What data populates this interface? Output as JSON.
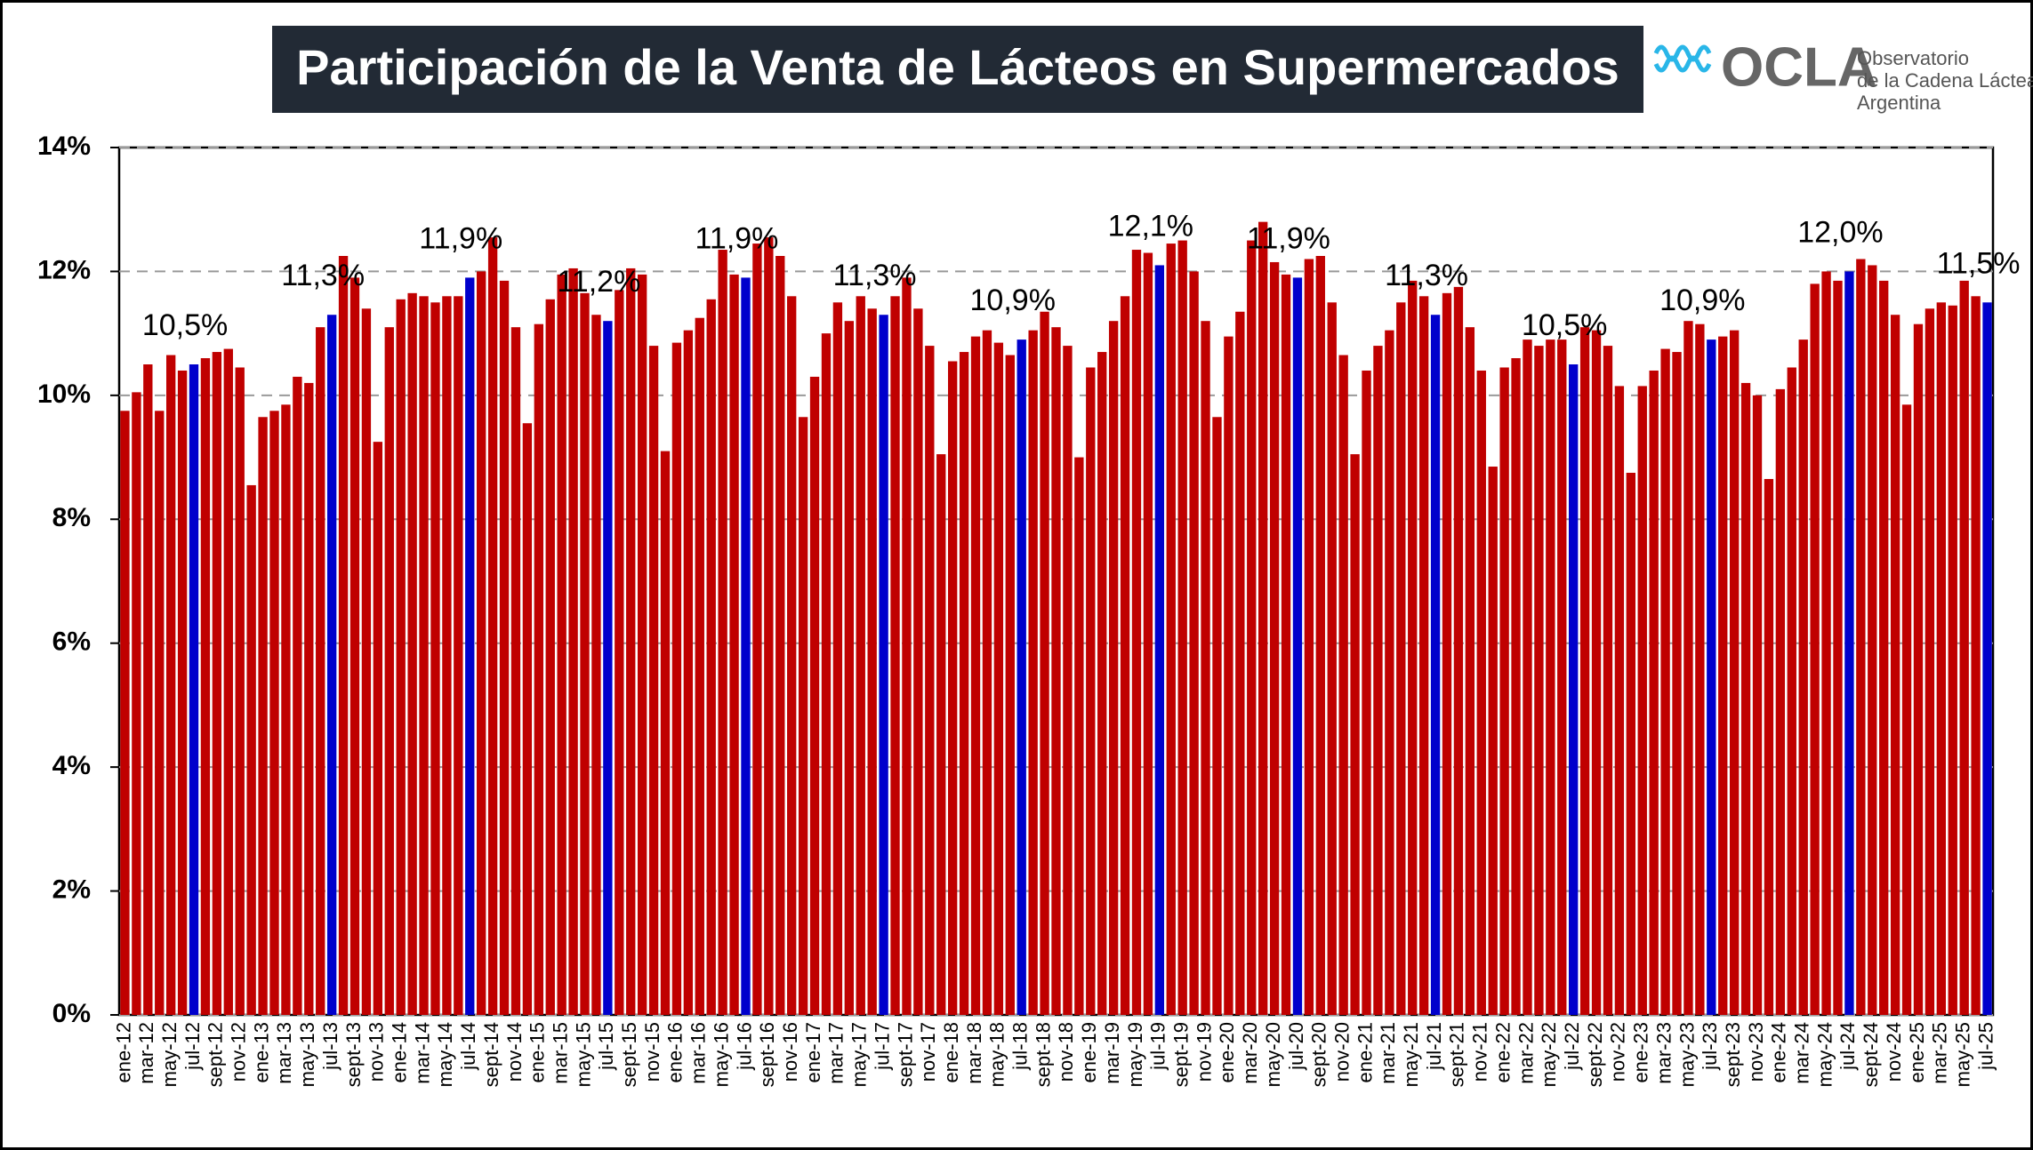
{
  "chart_data": {
    "type": "bar",
    "title": "Participación  de la Venta de Lácteos en Supermercados",
    "logo": {
      "name": "OCLA",
      "line1": "Observatorio",
      "line2": "de la Cadena Láctea",
      "line3": "Argentina"
    },
    "categories": [
      "ene-12",
      null,
      "mar-12",
      null,
      "may-12",
      null,
      "jul-12",
      null,
      "sept-12",
      null,
      "nov-12",
      null,
      "ene-13",
      null,
      "mar-13",
      null,
      "may-13",
      null,
      "jul-13",
      null,
      "sept-13",
      null,
      "nov-13",
      null,
      "ene-14",
      null,
      "mar-14",
      null,
      "may-14",
      null,
      "jul-14",
      null,
      "sept-14",
      null,
      "nov-14",
      null,
      "ene-15",
      null,
      "mar-15",
      null,
      "may-15",
      null,
      "jul-15",
      null,
      "sept-15",
      null,
      "nov-15",
      null,
      "ene-16",
      null,
      "mar-16",
      null,
      "may-16",
      null,
      "jul-16",
      null,
      "sept-16",
      null,
      "nov-16",
      null,
      "ene-17",
      null,
      "mar-17",
      null,
      "may-17",
      null,
      "jul-17",
      null,
      "sept-17",
      null,
      "nov-17",
      null,
      "ene-18",
      null,
      "mar-18",
      null,
      "may-18",
      null,
      "jul-18",
      null,
      "sept-18",
      null,
      "nov-18",
      null,
      "ene-19",
      null,
      "mar-19",
      null,
      "may-19",
      null,
      "jul-19",
      null,
      "sept-19",
      null,
      "nov-19",
      null,
      "ene-20",
      null,
      "mar-20",
      null,
      "may-20",
      null,
      "jul-20",
      null,
      "sept-20",
      null,
      "nov-20",
      null,
      "ene-21",
      null,
      "mar-21",
      null,
      "may-21",
      null,
      "jul-21",
      null,
      "sept-21",
      null,
      "nov-21",
      null,
      "ene-22",
      null,
      "mar-22",
      null,
      "may-22",
      null,
      "jul-22",
      null,
      "sept-22",
      null,
      "nov-22",
      null,
      "ene-23",
      null,
      "mar-23",
      null,
      "may-23",
      null,
      "jul-23",
      null,
      "sept-23",
      null,
      "nov-23",
      null,
      "ene-24",
      null,
      "mar-24",
      null,
      "may-24",
      null,
      "jul-24",
      null,
      "sept-24",
      null,
      "nov-24",
      null,
      "ene-25",
      null,
      "mar-25",
      null,
      "may-25",
      null,
      "jul-25"
    ],
    "values": [
      9.75,
      10.05,
      10.5,
      9.75,
      10.65,
      10.4,
      10.5,
      10.6,
      10.7,
      10.75,
      10.45,
      8.55,
      9.65,
      9.75,
      9.85,
      10.3,
      10.2,
      11.1,
      11.3,
      12.25,
      11.9,
      11.4,
      9.25,
      11.1,
      11.55,
      11.65,
      11.6,
      11.5,
      11.6,
      11.6,
      11.9,
      12.0,
      12.55,
      11.85,
      11.1,
      9.55,
      11.15,
      11.55,
      11.95,
      12.05,
      11.65,
      11.3,
      11.2,
      11.7,
      12.05,
      11.95,
      10.8,
      9.1,
      10.85,
      11.05,
      11.25,
      11.55,
      12.35,
      11.95,
      11.9,
      12.45,
      12.55,
      12.25,
      11.6,
      9.65,
      10.3,
      11.0,
      11.5,
      11.2,
      11.6,
      11.4,
      11.3,
      11.6,
      11.9,
      11.4,
      10.8,
      9.05,
      10.55,
      10.7,
      10.95,
      11.05,
      10.85,
      10.65,
      10.9,
      11.05,
      11.35,
      11.1,
      10.8,
      9.0,
      10.45,
      10.7,
      11.2,
      11.6,
      12.35,
      12.3,
      12.1,
      12.45,
      12.5,
      12.0,
      11.2,
      9.65,
      10.95,
      11.35,
      12.5,
      12.8,
      12.15,
      11.95,
      11.9,
      12.2,
      12.25,
      11.5,
      10.65,
      9.05,
      10.4,
      10.8,
      11.05,
      11.5,
      11.85,
      11.6,
      11.3,
      11.65,
      11.75,
      11.1,
      10.4,
      8.85,
      10.45,
      10.6,
      10.9,
      10.8,
      10.9,
      10.9,
      10.5,
      11.1,
      11.05,
      10.8,
      10.15,
      8.75,
      10.15,
      10.4,
      10.75,
      10.7,
      11.2,
      11.15,
      10.9,
      10.95,
      11.05,
      10.2,
      10.0,
      8.65,
      10.1,
      10.45,
      10.9,
      11.8,
      12.0,
      11.85,
      12.0,
      12.2,
      12.1,
      11.85,
      11.3,
      9.85,
      11.15,
      11.4,
      11.5,
      11.45,
      11.85,
      11.6,
      11.5
    ],
    "value_labels": [
      null,
      null,
      null,
      null,
      null,
      null,
      "10,5%",
      null,
      null,
      null,
      null,
      null,
      null,
      null,
      null,
      null,
      null,
      null,
      "11,3%",
      null,
      null,
      null,
      null,
      null,
      null,
      null,
      null,
      null,
      null,
      null,
      "11,9%",
      null,
      null,
      null,
      null,
      null,
      null,
      null,
      null,
      null,
      null,
      null,
      "11,2%",
      null,
      null,
      null,
      null,
      null,
      null,
      null,
      null,
      null,
      null,
      null,
      "11,9%",
      null,
      null,
      null,
      null,
      null,
      null,
      null,
      null,
      null,
      null,
      null,
      "11,3%",
      null,
      null,
      null,
      null,
      null,
      null,
      null,
      null,
      null,
      null,
      null,
      "10,9%",
      null,
      null,
      null,
      null,
      null,
      null,
      null,
      null,
      null,
      null,
      null,
      "12,1%",
      null,
      null,
      null,
      null,
      null,
      null,
      null,
      null,
      null,
      null,
      null,
      "11,9%",
      null,
      null,
      null,
      null,
      null,
      null,
      null,
      null,
      null,
      null,
      null,
      "11,3%",
      null,
      null,
      null,
      null,
      null,
      null,
      null,
      null,
      null,
      null,
      null,
      "10,5%",
      null,
      null,
      null,
      null,
      null,
      null,
      null,
      null,
      null,
      null,
      null,
      "10,9%",
      null,
      null,
      null,
      null,
      null,
      null,
      null,
      null,
      null,
      null,
      null,
      "12,0%",
      null,
      null,
      null,
      null,
      null,
      null,
      null,
      null,
      null,
      null,
      null,
      "11,5%"
    ],
    "color": "#c00000",
    "highlight_color": "#0000cc",
    "ylim": [
      0,
      14
    ],
    "yticks": [
      {
        "value": 0,
        "label": "0%"
      },
      {
        "value": 2,
        "label": "2%"
      },
      {
        "value": 4,
        "label": "4%"
      },
      {
        "value": 6,
        "label": "6%"
      },
      {
        "value": 8,
        "label": "8%"
      },
      {
        "value": 10,
        "label": "10%"
      },
      {
        "value": 12,
        "label": "12%"
      },
      {
        "value": 14,
        "label": "14%"
      }
    ],
    "grid": true
  }
}
